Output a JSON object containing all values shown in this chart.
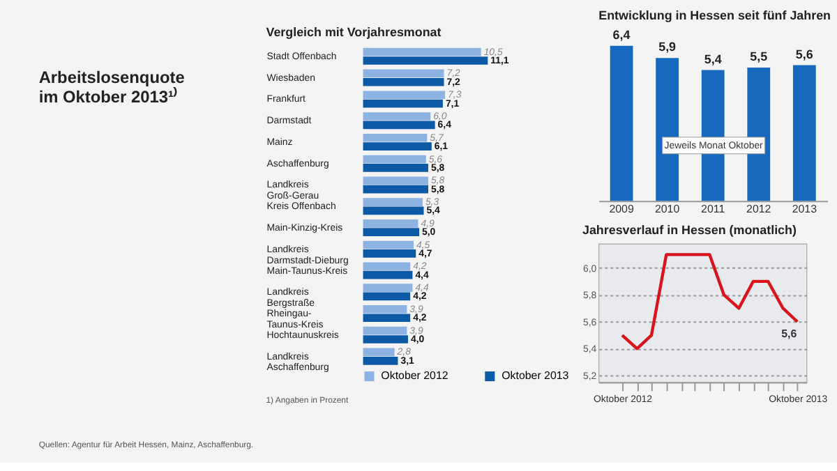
{
  "chart_data": [
    {
      "type": "other",
      "title": "Arbeitslosenquote\nim Oktober 2013¹⁾",
      "annotations": [
        "Quellen: Agentur für Arbeit Hessen, Mainz, Aschaffenburg."
      ]
    },
    {
      "type": "bar",
      "orientation": "horizontal",
      "title": "Vergleich mit Vorjahresmonat",
      "categories": [
        "Stadt Offenbach",
        "Wiesbaden",
        "Frankfurt",
        "Darmstadt",
        "Mainz",
        "Aschaffenburg",
        "Landkreis\nGroß-Gerau",
        "Kreis Offenbach",
        "Main-Kinzig-Kreis",
        "Landkreis\nDarmstadt-Dieburg",
        "Main-Taunus-Kreis",
        "Landkreis\nBergstraße",
        "Rheingau-\nTaunus-Kreis",
        "Hochtaunuskreis",
        "Landkreis\nAschaffenburg"
      ],
      "series": [
        {
          "name": "Oktober 2012",
          "color": "#8db3e2",
          "values": [
            10.5,
            7.2,
            7.3,
            6.0,
            5.7,
            5.6,
            5.8,
            5.3,
            4.9,
            4.5,
            4.2,
            4.4,
            3.9,
            3.9,
            2.8
          ],
          "value_labels": [
            "10,5",
            "7,2",
            "7,3",
            "6,0",
            "5,7",
            "5,6",
            "5,8",
            "5,3",
            "4,9",
            "4,5",
            "4,2",
            "4,4",
            "3,9",
            "3,9",
            "2,8"
          ]
        },
        {
          "name": "Oktober 2013",
          "color": "#0c59a6",
          "values": [
            11.1,
            7.2,
            7.1,
            6.4,
            6.1,
            5.8,
            5.8,
            5.4,
            5.0,
            4.7,
            4.4,
            4.2,
            4.2,
            4.0,
            3.1
          ],
          "value_labels": [
            "11,1",
            "7,2",
            "7,1",
            "6,4",
            "6,1",
            "5,8",
            "5,8",
            "5,4",
            "5,0",
            "4,7",
            "4,4",
            "4,2",
            "4,2",
            "4,0",
            "3,1"
          ]
        }
      ],
      "tick_labels": false,
      "legend": "bottom",
      "annotations": [
        "1) Angaben in Prozent"
      ]
    },
    {
      "type": "bar",
      "title": "Entwicklung in Hessen seit fünf Jahren",
      "categories": [
        "2009",
        "2010",
        "2011",
        "2012",
        "2013"
      ],
      "values": [
        6.4,
        5.9,
        5.4,
        5.5,
        5.6
      ],
      "value_labels": [
        "6,4",
        "5,9",
        "5,4",
        "5,5",
        "5,6"
      ],
      "color": "#1769c0",
      "tick_labels": "x",
      "annotations": [
        "Jeweils Monat Oktober"
      ]
    },
    {
      "type": "line",
      "title": "Jahresverlauf in Hessen (monatlich)",
      "x": [
        "2012-10",
        "2012-11",
        "2012-12",
        "2013-01",
        "2013-02",
        "2013-03",
        "2013-04",
        "2013-05",
        "2013-06",
        "2013-07",
        "2013-08",
        "2013-09",
        "2013-10"
      ],
      "series": [
        {
          "color": "#d9141c",
          "values": [
            5.5,
            5.4,
            5.5,
            6.1,
            6.1,
            6.1,
            6.1,
            5.8,
            5.7,
            5.9,
            5.9,
            5.7,
            5.6
          ]
        }
      ],
      "xlim": [
        "2012-08-13",
        "2013-10-20"
      ],
      "xticks": [
        {
          "value": "2012-10",
          "label": "Oktober 2012"
        },
        {
          "value": "2012-11",
          "label": null
        },
        {
          "value": "2012-12",
          "label": null
        },
        {
          "value": "2013-01",
          "label": null
        },
        {
          "value": "2013-02",
          "label": null
        },
        {
          "value": "2013-03",
          "label": null
        },
        {
          "value": "2013-04",
          "label": null
        },
        {
          "value": "2013-05",
          "label": null
        },
        {
          "value": "2013-06",
          "label": null
        },
        {
          "value": "2013-07",
          "label": null
        },
        {
          "value": "2013-08",
          "label": null
        },
        {
          "value": "2013-09",
          "label": null
        },
        {
          "value": "2013-10",
          "label": "Oktober 2013"
        }
      ],
      "ylim": [
        5.15,
        6.18
      ],
      "yticks": [
        {
          "value": 5.2,
          "label": "5,2"
        },
        {
          "value": 5.4,
          "label": "5,4"
        },
        {
          "value": 5.6,
          "label": "5,6"
        },
        {
          "value": 5.8,
          "label": "5,8"
        },
        {
          "value": 6.0,
          "label": "6,0"
        }
      ],
      "grid": "y",
      "line_style": "solid",
      "annotations": [
        {
          "text": "5,6",
          "x": "2013-10",
          "y": 5.6
        }
      ]
    }
  ]
}
